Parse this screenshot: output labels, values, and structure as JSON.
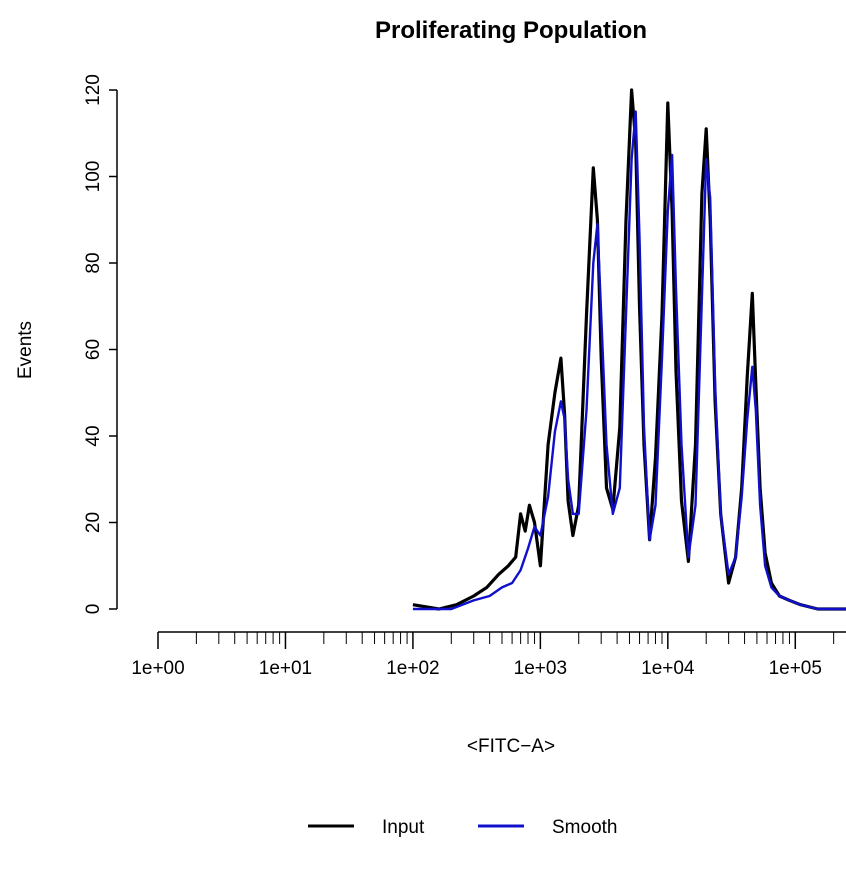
{
  "chart_data": {
    "type": "line",
    "title": "Proliferating Population",
    "xlabel": "<FITC−A>",
    "ylabel": "Events",
    "xscale": "log10",
    "xlim": [
      1,
      250000
    ],
    "ylim": [
      0,
      120
    ],
    "x_ticks": [
      1,
      10,
      100,
      1000,
      10000,
      100000
    ],
    "x_tick_labels": [
      "1e+00",
      "1e+01",
      "1e+02",
      "1e+03",
      "1e+04",
      "1e+05"
    ],
    "y_ticks": [
      0,
      20,
      40,
      60,
      80,
      100,
      120
    ],
    "y_tick_labels": [
      "0",
      "20",
      "40",
      "60",
      "80",
      "100",
      "120"
    ],
    "grid": false,
    "legend_position": "bottom",
    "series": [
      {
        "name": "Input",
        "color": "#000000",
        "x": [
          100,
          160,
          220,
          300,
          380,
          470,
          560,
          640,
          700,
          760,
          820,
          900,
          1000,
          1150,
          1300,
          1450,
          1550,
          1650,
          1800,
          2000,
          2300,
          2600,
          2800,
          3000,
          3300,
          3700,
          4200,
          4700,
          5200,
          5600,
          6000,
          6500,
          7200,
          8000,
          9000,
          10000,
          10800,
          11600,
          12800,
          14500,
          16500,
          18500,
          20000,
          21500,
          23500,
          26000,
          30000,
          34000,
          38000,
          42000,
          46000,
          49000,
          53000,
          58000,
          65000,
          75000,
          90000,
          110000,
          150000,
          200000,
          250000
        ],
        "y": [
          1,
          0,
          1,
          3,
          5,
          8,
          10,
          12,
          22,
          18,
          24,
          20,
          10,
          38,
          50,
          58,
          45,
          25,
          17,
          24,
          68,
          102,
          90,
          58,
          28,
          23,
          42,
          90,
          120,
          108,
          70,
          38,
          16,
          35,
          68,
          117,
          92,
          55,
          25,
          11,
          38,
          96,
          111,
          90,
          48,
          22,
          6,
          12,
          28,
          54,
          73,
          52,
          28,
          13,
          6,
          3,
          2,
          1,
          0,
          0,
          0
        ]
      },
      {
        "name": "Smooth",
        "color": "#1010cc",
        "x": [
          100,
          200,
          300,
          400,
          500,
          600,
          700,
          800,
          900,
          1000,
          1150,
          1300,
          1450,
          1550,
          1650,
          1800,
          2000,
          2300,
          2600,
          2800,
          3000,
          3300,
          3700,
          4200,
          4700,
          5200,
          5600,
          6000,
          6500,
          7200,
          8000,
          9000,
          10000,
          10800,
          11600,
          12800,
          14500,
          16500,
          18500,
          20000,
          21500,
          23500,
          26000,
          30000,
          34000,
          38000,
          42000,
          46000,
          49000,
          53000,
          58000,
          65000,
          75000,
          90000,
          110000,
          150000,
          200000,
          250000
        ],
        "y": [
          0,
          0,
          2,
          3,
          5,
          6,
          9,
          14,
          19,
          17,
          26,
          41,
          48,
          44,
          30,
          22,
          22,
          46,
          80,
          89,
          68,
          38,
          22,
          28,
          68,
          104,
          115,
          86,
          42,
          16,
          24,
          58,
          92,
          105,
          74,
          38,
          12,
          24,
          72,
          104,
          95,
          52,
          22,
          8,
          12,
          26,
          44,
          56,
          46,
          24,
          10,
          5,
          3,
          2,
          1,
          0,
          0,
          0
        ]
      }
    ]
  }
}
